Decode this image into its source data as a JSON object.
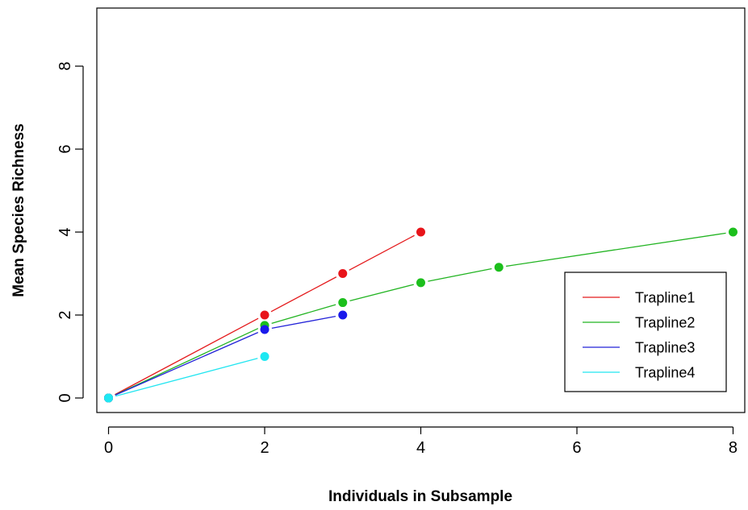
{
  "chart_data": {
    "type": "line",
    "title": "",
    "xlabel": "Individuals in Subsample",
    "ylabel": "Mean Species Richness",
    "xlim": [
      -0.15,
      8.15
    ],
    "ylim": [
      -0.35,
      9.4
    ],
    "x_ticks": [
      0,
      2,
      4,
      6,
      8
    ],
    "y_ticks": [
      0,
      2,
      4,
      6,
      8
    ],
    "x_tick_labels": [
      "0",
      "2",
      "4",
      "6",
      "8"
    ],
    "y_tick_labels": [
      "0",
      "2",
      "4",
      "6",
      "8"
    ],
    "grid": false,
    "legend_position": "bottom-right",
    "series": [
      {
        "name": "Trapline1",
        "color": "#e41a1c",
        "marker_color": "#e8141a",
        "x": [
          0,
          2,
          3,
          4
        ],
        "y": [
          0,
          2,
          3,
          4
        ]
      },
      {
        "name": "Trapline2",
        "color": "#22b422",
        "marker_color": "#1cbf1c",
        "x": [
          0,
          2,
          3,
          4,
          5,
          8
        ],
        "y": [
          0,
          1.75,
          2.3,
          2.78,
          3.15,
          4
        ]
      },
      {
        "name": "Trapline3",
        "color": "#2323d8",
        "marker_color": "#1a1aeb",
        "x": [
          0,
          2,
          3
        ],
        "y": [
          0,
          1.65,
          2
        ]
      },
      {
        "name": "Trapline4",
        "color": "#22e5f0",
        "marker_color": "#1ee8f2",
        "x": [
          0,
          2
        ],
        "y": [
          0,
          1
        ]
      }
    ]
  }
}
